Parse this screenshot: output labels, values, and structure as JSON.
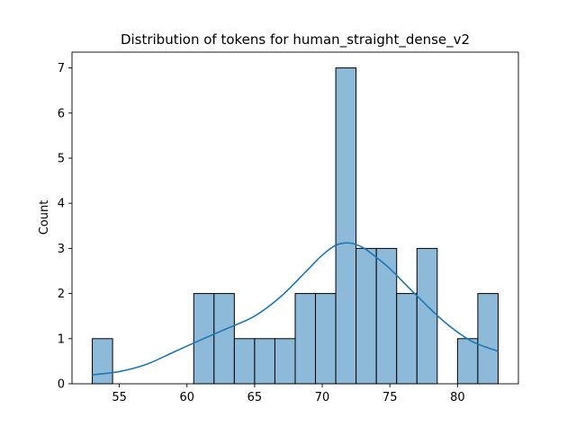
{
  "chart_data": {
    "type": "bar",
    "subtype": "histogram-with-kde",
    "title": "Distribution of tokens for human_straight_dense_v2",
    "xlabel": "",
    "ylabel": "Count",
    "xlim": [
      51.5,
      84.5
    ],
    "ylim": [
      0,
      7.35
    ],
    "xticks": [
      55,
      60,
      65,
      70,
      75,
      80
    ],
    "yticks": [
      0,
      1,
      2,
      3,
      4,
      5,
      6,
      7
    ],
    "bins": [
      {
        "x0": 53.0,
        "x1": 54.5,
        "count": 1
      },
      {
        "x0": 54.5,
        "x1": 56.0,
        "count": 0
      },
      {
        "x0": 56.0,
        "x1": 57.5,
        "count": 0
      },
      {
        "x0": 57.5,
        "x1": 59.0,
        "count": 0
      },
      {
        "x0": 59.0,
        "x1": 60.5,
        "count": 0
      },
      {
        "x0": 60.5,
        "x1": 62.0,
        "count": 2
      },
      {
        "x0": 62.0,
        "x1": 63.5,
        "count": 2
      },
      {
        "x0": 63.5,
        "x1": 65.0,
        "count": 1
      },
      {
        "x0": 65.0,
        "x1": 66.5,
        "count": 1
      },
      {
        "x0": 66.5,
        "x1": 68.0,
        "count": 1
      },
      {
        "x0": 68.0,
        "x1": 69.5,
        "count": 2
      },
      {
        "x0": 69.5,
        "x1": 71.0,
        "count": 2
      },
      {
        "x0": 71.0,
        "x1": 72.5,
        "count": 7
      },
      {
        "x0": 72.5,
        "x1": 74.0,
        "count": 3
      },
      {
        "x0": 74.0,
        "x1": 75.5,
        "count": 3
      },
      {
        "x0": 75.5,
        "x1": 77.0,
        "count": 2
      },
      {
        "x0": 77.0,
        "x1": 78.5,
        "count": 3
      },
      {
        "x0": 78.5,
        "x1": 80.0,
        "count": 0
      },
      {
        "x0": 80.0,
        "x1": 81.5,
        "count": 1
      },
      {
        "x0": 81.5,
        "x1": 83.0,
        "count": 2
      }
    ],
    "kde": {
      "x": [
        53,
        55,
        57,
        59,
        61,
        63,
        65,
        67,
        69,
        70,
        71,
        72,
        73,
        74,
        75,
        77,
        79,
        81,
        83
      ],
      "y": [
        0.2,
        0.27,
        0.43,
        0.7,
        0.97,
        1.23,
        1.5,
        1.95,
        2.55,
        2.85,
        3.07,
        3.12,
        3.02,
        2.8,
        2.55,
        1.95,
        1.38,
        0.95,
        0.72
      ]
    },
    "colors": {
      "bar_fill": "#8dbad9",
      "bar_edge": "#000000",
      "kde_line": "#1f77b4"
    },
    "grid": false,
    "legend": "none"
  }
}
